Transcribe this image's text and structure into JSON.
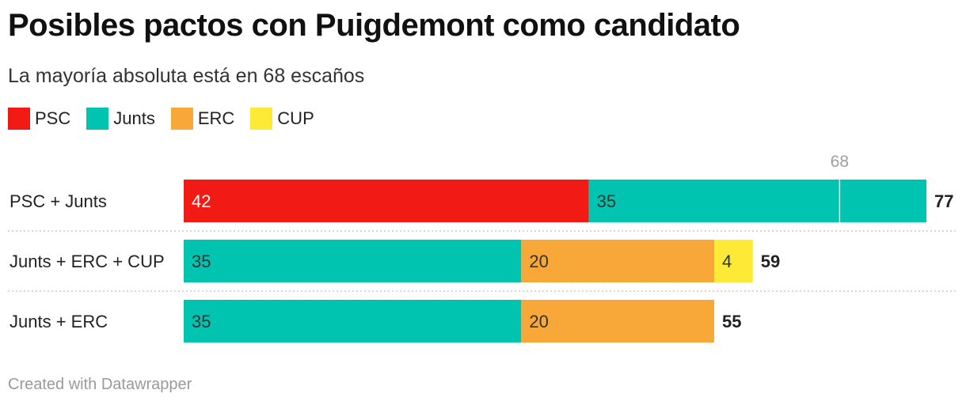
{
  "title": "Posibles pactos con Puigdemont como candidato",
  "subtitle": "La mayoría absoluta está en 68 escaños",
  "footer": "Created with Datawrapper",
  "legend": [
    {
      "label": "PSC",
      "color": "#f21a14"
    },
    {
      "label": "Junts",
      "color": "#00c4b0"
    },
    {
      "label": "ERC",
      "color": "#f8a839"
    },
    {
      "label": "CUP",
      "color": "#fcea36"
    }
  ],
  "chart_data": {
    "type": "bar",
    "orientation": "horizontal",
    "stacked": true,
    "categories": [
      "PSC + Junts",
      "Junts + ERC + CUP",
      "Junts + ERC"
    ],
    "series": [
      {
        "name": "PSC",
        "color": "#f21a14",
        "values": [
          42,
          0,
          0
        ]
      },
      {
        "name": "Junts",
        "color": "#00c4b0",
        "values": [
          35,
          35,
          35
        ]
      },
      {
        "name": "ERC",
        "color": "#f8a839",
        "values": [
          0,
          20,
          20
        ]
      },
      {
        "name": "CUP",
        "color": "#fcea36",
        "values": [
          0,
          4,
          0
        ]
      }
    ],
    "totals": [
      77,
      59,
      55
    ],
    "reference_line": {
      "value": 68,
      "label": "68"
    },
    "xlim": [
      0,
      77
    ],
    "grid": false,
    "legend_position": "top-left"
  }
}
